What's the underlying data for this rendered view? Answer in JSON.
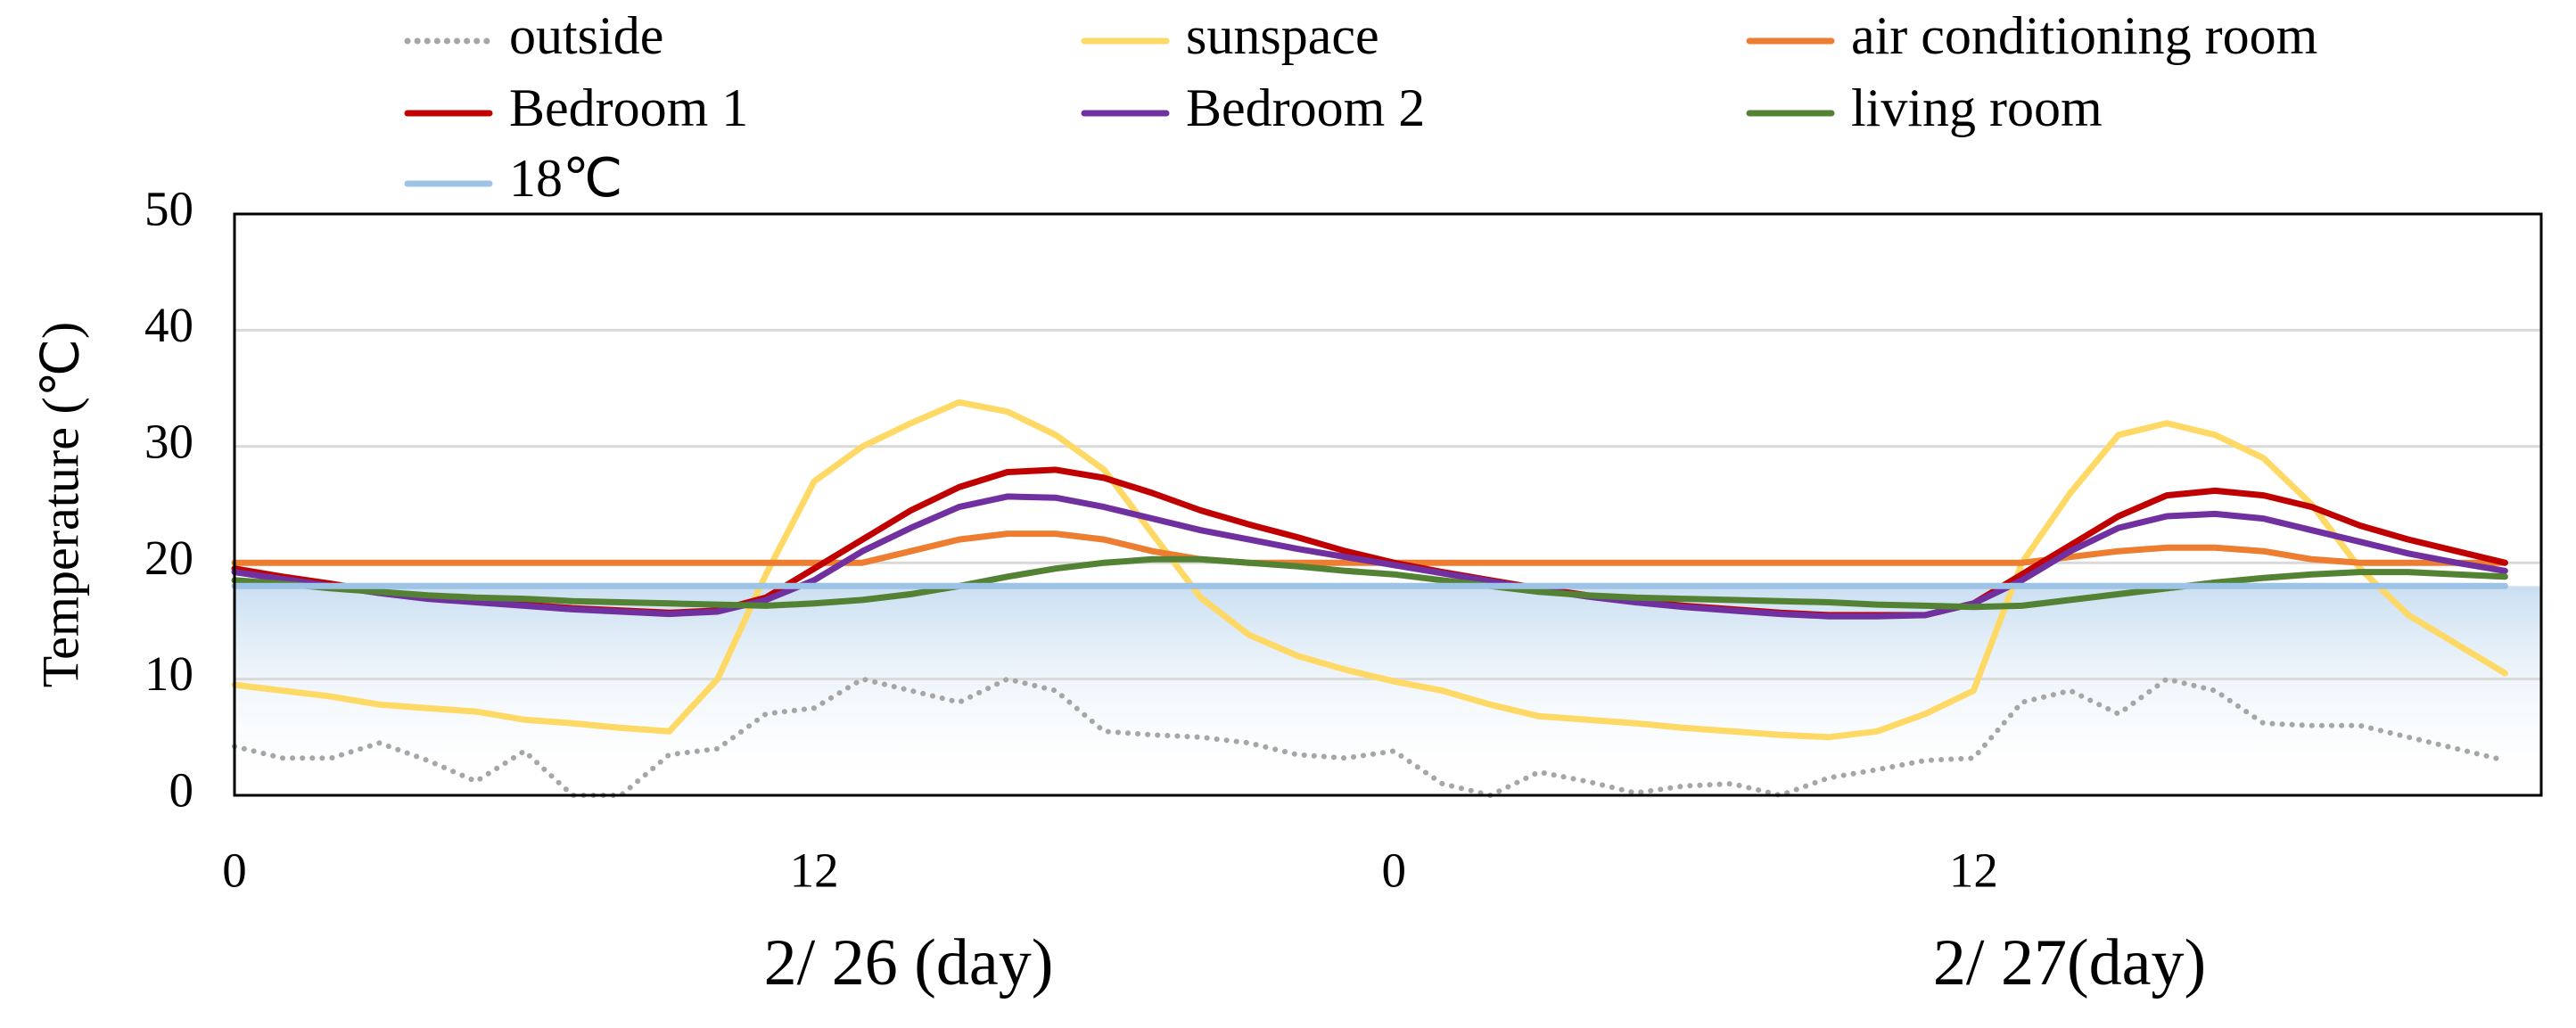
{
  "chart_data": {
    "type": "line",
    "y_label": "Temperature (℃)",
    "x": [
      0,
      1,
      2,
      3,
      4,
      5,
      6,
      7,
      8,
      9,
      10,
      11,
      12,
      13,
      14,
      15,
      16,
      17,
      18,
      19,
      20,
      21,
      22,
      23,
      24,
      25,
      26,
      27,
      28,
      29,
      30,
      31,
      32,
      33,
      34,
      35,
      36,
      37,
      38,
      39,
      40,
      41,
      42,
      43,
      44,
      45,
      46,
      47
    ],
    "xlim": [
      0,
      47.75
    ],
    "xticks": [
      0,
      12,
      {
        "value": 24,
        "label": "0"
      },
      {
        "value": 36,
        "label": "12"
      }
    ],
    "x_group_labels": [
      "2/ 26 (day)",
      "2/ 27(day)"
    ],
    "ylim": [
      0,
      50
    ],
    "yticks": [
      0,
      10,
      20,
      30,
      40,
      50
    ],
    "grid": true,
    "legend": "top",
    "series": [
      {
        "name": "outside",
        "color": "#a6a6a6",
        "style": "dotted",
        "values": [
          4.2,
          3.2,
          3.2,
          4.5,
          3.0,
          1.2,
          3.8,
          0,
          0,
          3.5,
          4.0,
          7.0,
          7.5,
          10,
          9,
          8,
          10,
          9,
          5.5,
          5.2,
          5.0,
          4.5,
          3.5,
          3.2,
          3.8,
          1.0,
          0,
          2.0,
          1.2,
          0.2,
          0.8,
          1.0,
          0,
          1.5,
          2.2,
          3.0,
          3.2,
          8.0,
          9.0,
          7.0,
          10,
          9,
          6.2,
          6.0,
          6.0,
          5.0,
          4.0,
          3.0
        ]
      },
      {
        "name": "sunspace",
        "color": "#ffd966",
        "style": "solid",
        "values": [
          9.5,
          9,
          8.5,
          7.8,
          7.5,
          7.2,
          6.5,
          6.2,
          5.8,
          5.5,
          10,
          19,
          27,
          30,
          32,
          33.8,
          33,
          31,
          28,
          22.5,
          17,
          13.8,
          12,
          10.8,
          9.8,
          9,
          7.8,
          6.8,
          6.5,
          6.2,
          5.8,
          5.5,
          5.2,
          5.0,
          5.5,
          7,
          9,
          20,
          26,
          31,
          32,
          31,
          29,
          25,
          19.5,
          15.5,
          13,
          10.5
        ]
      },
      {
        "name": "air conditioning room",
        "color": "#ed7d31",
        "style": "solid",
        "values": [
          20,
          20,
          20,
          20,
          20,
          20,
          20,
          20,
          20,
          20,
          20,
          20,
          20,
          20,
          21,
          22,
          22.5,
          22.5,
          22,
          21,
          20.3,
          20,
          20,
          20,
          20,
          20,
          20,
          20,
          20,
          20,
          20,
          20,
          20,
          20,
          20,
          20,
          20,
          20,
          20.5,
          21,
          21.3,
          21.3,
          21,
          20.3,
          20,
          20,
          20,
          20
        ]
      },
      {
        "name": "Bedroom 1",
        "color": "#c00000",
        "style": "solid",
        "values": [
          19.5,
          18.8,
          18.2,
          17.5,
          17,
          16.7,
          16.4,
          16.1,
          15.9,
          15.7,
          15.9,
          17,
          19.5,
          22,
          24.5,
          26.5,
          27.8,
          28,
          27.3,
          26,
          24.5,
          23.3,
          22.2,
          21,
          20,
          19.2,
          18.5,
          17.8,
          17.2,
          16.7,
          16.3,
          16,
          15.7,
          15.5,
          15.5,
          15.5,
          16.5,
          19,
          21.5,
          24,
          25.8,
          26.2,
          25.8,
          24.8,
          23.2,
          22,
          21,
          20
        ]
      },
      {
        "name": "Bedroom 2",
        "color": "#7030a0",
        "style": "solid",
        "values": [
          19.2,
          18.6,
          18,
          17.4,
          16.9,
          16.6,
          16.3,
          16,
          15.8,
          15.6,
          15.8,
          16.8,
          18.5,
          21,
          23,
          24.8,
          25.7,
          25.6,
          24.8,
          23.8,
          22.8,
          22,
          21.2,
          20.5,
          19.8,
          19.1,
          18.4,
          17.7,
          17.1,
          16.6,
          16.2,
          15.9,
          15.6,
          15.4,
          15.4,
          15.5,
          16.5,
          18.5,
          21,
          23,
          24,
          24.2,
          23.8,
          22.8,
          21.8,
          20.8,
          20,
          19.3
        ]
      },
      {
        "name": "living room",
        "color": "#548235",
        "style": "solid",
        "values": [
          18.5,
          18.2,
          17.8,
          17.5,
          17.2,
          17,
          16.9,
          16.7,
          16.6,
          16.5,
          16.4,
          16.3,
          16.5,
          16.8,
          17.3,
          18,
          18.8,
          19.5,
          20,
          20.3,
          20.3,
          20,
          19.7,
          19.3,
          19,
          18.5,
          18,
          17.5,
          17.2,
          17,
          16.9,
          16.8,
          16.7,
          16.6,
          16.4,
          16.3,
          16.2,
          16.3,
          16.8,
          17.3,
          17.8,
          18.3,
          18.7,
          19,
          19.2,
          19.2,
          19,
          18.8
        ]
      },
      {
        "name": "18℃",
        "color": "#9dc3e6",
        "style": "solid",
        "values": [
          18,
          18,
          18,
          18,
          18,
          18,
          18,
          18,
          18,
          18,
          18,
          18,
          18,
          18,
          18,
          18,
          18,
          18,
          18,
          18,
          18,
          18,
          18,
          18,
          18,
          18,
          18,
          18,
          18,
          18,
          18,
          18,
          18,
          18,
          18,
          18,
          18,
          18,
          18,
          18,
          18,
          18,
          18,
          18,
          18,
          18,
          18,
          18
        ]
      }
    ]
  }
}
